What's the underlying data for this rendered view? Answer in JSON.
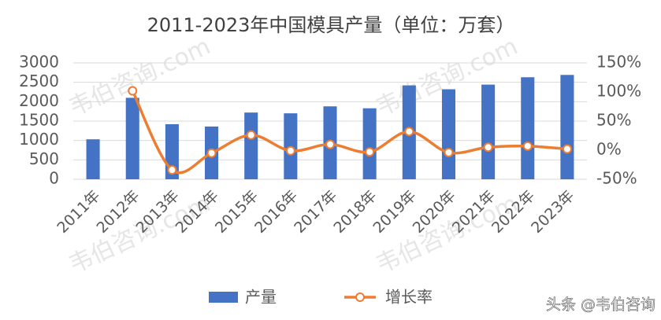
{
  "chart_data": {
    "type": "bar_line",
    "title": "2011-2023年中国模具产量（单位：万套）",
    "categories": [
      "2011年",
      "2012年",
      "2013年",
      "2014年",
      "2015年",
      "2016年",
      "2017年",
      "2018年",
      "2019年",
      "2020年",
      "2021年",
      "2022年",
      "2023年"
    ],
    "series": [
      {
        "name": "产量",
        "color": "#4472c4",
        "axis": "y",
        "values": [
          1030,
          2100,
          1420,
          1360,
          1720,
          1700,
          1880,
          1830,
          2420,
          2320,
          2440,
          2630,
          2690
        ]
      },
      {
        "name": "增长率",
        "color": "#ed7d31",
        "axis": "y2",
        "values": [
          null,
          102,
          -34,
          -5,
          26,
          -1,
          10,
          -3,
          32,
          -4,
          5,
          7,
          2
        ]
      }
    ],
    "ylim": [
      0,
      3000
    ],
    "yticks": [
      0,
      500,
      1000,
      1500,
      2000,
      2500,
      3000
    ],
    "y2lim": [
      -50,
      150
    ],
    "y2ticks": [
      {
        "value": -50,
        "label": "-50%"
      },
      {
        "value": 0,
        "label": "0%"
      },
      {
        "value": 50,
        "label": "50%"
      },
      {
        "value": 100,
        "label": "100%"
      },
      {
        "value": 150,
        "label": "150%"
      }
    ],
    "grid": true,
    "legend": "bottom",
    "watermark": "韦伯咨询.com",
    "source": "头条 @韦伯咨询"
  }
}
